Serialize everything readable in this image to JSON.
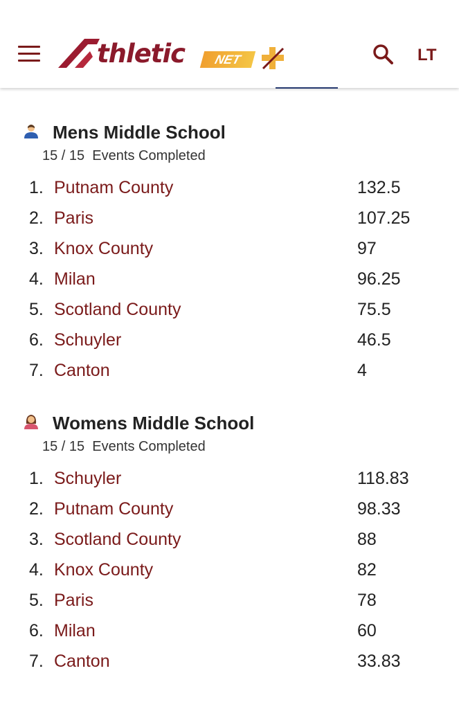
{
  "header": {
    "logo_text": "thletic",
    "logo_net": "NET",
    "lang_label": "LT",
    "brand_color": "#7a1a1a",
    "accent_color": "#f0a030"
  },
  "sections": [
    {
      "title": "Mens Middle School",
      "progress": "15 / 15",
      "progress_label": "Events Completed",
      "icon": "male-user-icon",
      "rows": [
        {
          "rank": "1.",
          "team": "Putnam County",
          "score": "132.5"
        },
        {
          "rank": "2.",
          "team": "Paris",
          "score": "107.25"
        },
        {
          "rank": "3.",
          "team": "Knox County",
          "score": "97"
        },
        {
          "rank": "4.",
          "team": "Milan",
          "score": "96.25"
        },
        {
          "rank": "5.",
          "team": "Scotland County",
          "score": "75.5"
        },
        {
          "rank": "6.",
          "team": "Schuyler",
          "score": "46.5"
        },
        {
          "rank": "7.",
          "team": "Canton",
          "score": "4"
        }
      ]
    },
    {
      "title": "Womens Middle School",
      "progress": "15 / 15",
      "progress_label": "Events Completed",
      "icon": "female-user-icon",
      "rows": [
        {
          "rank": "1.",
          "team": "Schuyler",
          "score": "118.83"
        },
        {
          "rank": "2.",
          "team": "Putnam County",
          "score": "98.33"
        },
        {
          "rank": "3.",
          "team": "Scotland County",
          "score": "88"
        },
        {
          "rank": "4.",
          "team": "Knox County",
          "score": "82"
        },
        {
          "rank": "5.",
          "team": "Paris",
          "score": "78"
        },
        {
          "rank": "6.",
          "team": "Milan",
          "score": "60"
        },
        {
          "rank": "7.",
          "team": "Canton",
          "score": "33.83"
        }
      ]
    }
  ]
}
